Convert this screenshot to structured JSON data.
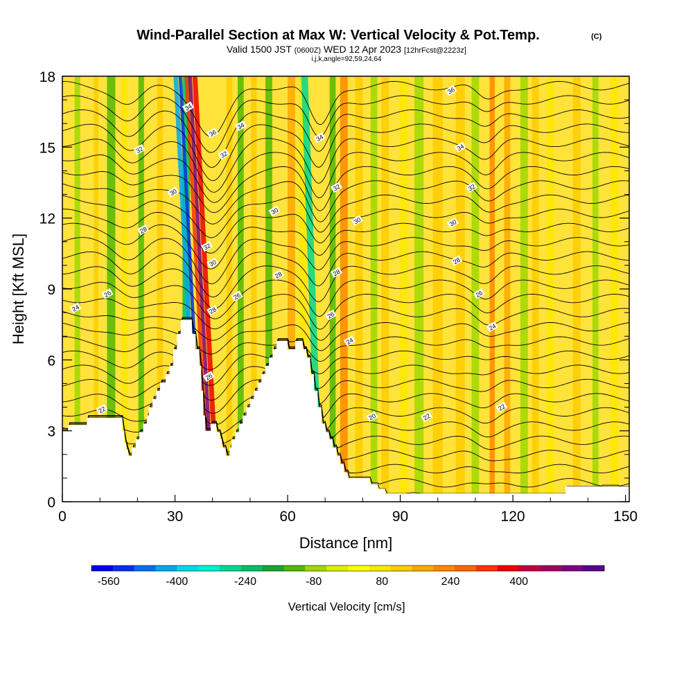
{
  "header": {
    "title": "Wind-Parallel Section at Max W: Vertical Velocity & Pot.Temp.",
    "copyright": "(C)",
    "subtitle_prefix": "Valid 1500 JST",
    "subtitle_zulu": "(0600Z)",
    "subtitle_date": "WED 12 Apr 2023",
    "subtitle_fcst": "[12hrFcst@2223z]",
    "params": "i,j,k,angle=92,59,24,64"
  },
  "chart_data": {
    "type": "heatmap",
    "xlabel": "Distance [nm]",
    "ylabel": "Height [Kft MSL]",
    "xlim": [
      0,
      151
    ],
    "ylim": [
      0,
      18
    ],
    "x_ticks": [
      0,
      30,
      60,
      90,
      120,
      150
    ],
    "y_ticks": [
      0,
      3,
      6,
      9,
      12,
      15,
      18
    ],
    "grid": false,
    "terrain_kft": [
      [
        0,
        3.0
      ],
      [
        1.5,
        3.0
      ],
      [
        1.5,
        3.25
      ],
      [
        6.5,
        3.25
      ],
      [
        6.5,
        3.55
      ],
      [
        16.0,
        3.55
      ],
      [
        16.0,
        3.0
      ],
      [
        16.5,
        3.0
      ],
      [
        16.5,
        2.5
      ],
      [
        17.0,
        2.5
      ],
      [
        17.0,
        2.2
      ],
      [
        17.5,
        2.2
      ],
      [
        17.5,
        1.95
      ],
      [
        18.5,
        1.95
      ],
      [
        18.5,
        2.3
      ],
      [
        19.5,
        2.3
      ],
      [
        19.5,
        2.65
      ],
      [
        20.5,
        2.65
      ],
      [
        20.5,
        2.95
      ],
      [
        21.5,
        2.95
      ],
      [
        21.5,
        3.3
      ],
      [
        22.5,
        3.3
      ],
      [
        22.5,
        3.65
      ],
      [
        23.0,
        3.65
      ],
      [
        23.0,
        4.0
      ],
      [
        24.0,
        4.0
      ],
      [
        24.0,
        4.35
      ],
      [
        25.0,
        4.35
      ],
      [
        25.0,
        4.7
      ],
      [
        26.0,
        4.7
      ],
      [
        26.0,
        5.05
      ],
      [
        27.5,
        5.05
      ],
      [
        27.5,
        5.4
      ],
      [
        28.5,
        5.4
      ],
      [
        28.5,
        5.75
      ],
      [
        29.5,
        5.75
      ],
      [
        29.5,
        6.45
      ],
      [
        30.5,
        6.45
      ],
      [
        30.5,
        7.1
      ],
      [
        31.5,
        7.1
      ],
      [
        31.5,
        7.7
      ],
      [
        34.5,
        7.7
      ],
      [
        34.5,
        7.1
      ],
      [
        35.5,
        7.1
      ],
      [
        35.5,
        6.45
      ],
      [
        36.5,
        6.45
      ],
      [
        36.5,
        5.75
      ],
      [
        37.0,
        5.75
      ],
      [
        37.0,
        4.7
      ],
      [
        37.5,
        4.7
      ],
      [
        37.5,
        3.65
      ],
      [
        38.0,
        3.65
      ],
      [
        38.0,
        3.0
      ],
      [
        39.5,
        3.0
      ],
      [
        39.5,
        3.3
      ],
      [
        41.0,
        3.3
      ],
      [
        41.0,
        2.95
      ],
      [
        42.0,
        2.95
      ],
      [
        42.0,
        2.65
      ],
      [
        42.5,
        2.65
      ],
      [
        42.5,
        2.3
      ],
      [
        43.5,
        2.3
      ],
      [
        43.5,
        1.95
      ],
      [
        44.5,
        1.95
      ],
      [
        44.5,
        2.3
      ],
      [
        45.0,
        2.3
      ],
      [
        45.0,
        2.65
      ],
      [
        46.0,
        2.65
      ],
      [
        46.0,
        2.95
      ],
      [
        47.0,
        2.95
      ],
      [
        47.0,
        3.3
      ],
      [
        48.0,
        3.3
      ],
      [
        48.0,
        3.65
      ],
      [
        49.0,
        3.65
      ],
      [
        49.0,
        4.0
      ],
      [
        50.0,
        4.0
      ],
      [
        50.0,
        4.35
      ],
      [
        51.0,
        4.35
      ],
      [
        51.0,
        4.7
      ],
      [
        52.0,
        4.7
      ],
      [
        52.0,
        5.05
      ],
      [
        53.0,
        5.05
      ],
      [
        53.0,
        5.4
      ],
      [
        54.0,
        5.4
      ],
      [
        54.0,
        5.75
      ],
      [
        55.0,
        5.75
      ],
      [
        55.0,
        6.1
      ],
      [
        56.0,
        6.1
      ],
      [
        56.0,
        6.45
      ],
      [
        57.0,
        6.45
      ],
      [
        57.0,
        6.8
      ],
      [
        60.0,
        6.8
      ],
      [
        60.0,
        6.45
      ],
      [
        62.0,
        6.45
      ],
      [
        62.0,
        6.8
      ],
      [
        64.0,
        6.8
      ],
      [
        64.0,
        6.45
      ],
      [
        65.0,
        6.45
      ],
      [
        65.0,
        6.1
      ],
      [
        66.0,
        6.1
      ],
      [
        66.0,
        5.4
      ],
      [
        67.0,
        5.4
      ],
      [
        67.0,
        4.7
      ],
      [
        68.0,
        4.7
      ],
      [
        68.0,
        4.0
      ],
      [
        69.0,
        4.0
      ],
      [
        69.0,
        3.3
      ],
      [
        70.0,
        3.3
      ],
      [
        70.0,
        2.95
      ],
      [
        71.0,
        2.95
      ],
      [
        71.0,
        2.65
      ],
      [
        72.0,
        2.65
      ],
      [
        72.0,
        2.3
      ],
      [
        73.0,
        2.3
      ],
      [
        73.0,
        1.95
      ],
      [
        74.0,
        1.95
      ],
      [
        74.0,
        1.6
      ],
      [
        75.0,
        1.6
      ],
      [
        75.0,
        1.25
      ],
      [
        76.0,
        1.25
      ],
      [
        76.0,
        1.0
      ],
      [
        82.0,
        1.0
      ],
      [
        82.0,
        0.75
      ],
      [
        84.0,
        0.75
      ],
      [
        84.0,
        0.55
      ],
      [
        86.0,
        0.55
      ],
      [
        86.0,
        0.35
      ],
      [
        134.0,
        0.35
      ],
      [
        134.0,
        0.65
      ],
      [
        151.0,
        0.65
      ]
    ],
    "w_bands": [
      {
        "x": 4,
        "w": 1.5,
        "v": -60
      },
      {
        "x": 9,
        "w": 1.2,
        "v": 120
      },
      {
        "x": 13,
        "w": 2.2,
        "v": -120
      },
      {
        "x": 16.5,
        "w": 1.4,
        "v": 60
      },
      {
        "x": 21,
        "w": 1.5,
        "v": -140
      },
      {
        "x": 26,
        "w": 1.5,
        "v": 100
      },
      {
        "x": 33,
        "w": 2.0,
        "v": -220
      },
      {
        "x": 36.2,
        "w": 1.2,
        "v": -420
      },
      {
        "x": 37.4,
        "w": 0.9,
        "v": -520
      },
      {
        "x": 39.0,
        "w": 0.9,
        "v": 300
      },
      {
        "x": 40.0,
        "w": 1.0,
        "v": 520
      },
      {
        "x": 41.3,
        "w": 1.3,
        "v": 380
      },
      {
        "x": 44.5,
        "w": 1.6,
        "v": 120
      },
      {
        "x": 47.5,
        "w": 1.6,
        "v": -140
      },
      {
        "x": 51,
        "w": 1.5,
        "v": 100
      },
      {
        "x": 55,
        "w": 1.8,
        "v": -120
      },
      {
        "x": 61,
        "w": 2.0,
        "v": 180
      },
      {
        "x": 64,
        "w": 2.0,
        "v": 80
      },
      {
        "x": 68.5,
        "w": 1.8,
        "v": -260
      },
      {
        "x": 72,
        "w": 1.6,
        "v": -120
      },
      {
        "x": 75,
        "w": 2.0,
        "v": 200
      },
      {
        "x": 79,
        "w": 2.0,
        "v": 120
      },
      {
        "x": 83,
        "w": 1.8,
        "v": -60
      },
      {
        "x": 86,
        "w": 2.0,
        "v": 140
      },
      {
        "x": 91,
        "w": 2.0,
        "v": 80
      },
      {
        "x": 95,
        "w": 2.4,
        "v": -80
      },
      {
        "x": 100,
        "w": 2.6,
        "v": 140
      },
      {
        "x": 106,
        "w": 2.4,
        "v": 100
      },
      {
        "x": 110,
        "w": 2.0,
        "v": -60
      },
      {
        "x": 114.5,
        "w": 1.4,
        "v": 200
      },
      {
        "x": 118.5,
        "w": 1.6,
        "v": 160
      },
      {
        "x": 123,
        "w": 2.0,
        "v": -80
      },
      {
        "x": 126,
        "w": 1.8,
        "v": 140
      },
      {
        "x": 130,
        "w": 1.8,
        "v": 80
      },
      {
        "x": 137,
        "w": 2.0,
        "v": 120
      },
      {
        "x": 142,
        "w": 1.6,
        "v": -80
      },
      {
        "x": 147,
        "w": 2.0,
        "v": 80
      }
    ],
    "theta_label_values": [
      {
        "x": 10.5,
        "y": 3.9,
        "text": "22"
      },
      {
        "x": 3.5,
        "y": 8.2,
        "text": "24"
      },
      {
        "x": 12,
        "y": 8.8,
        "text": "26"
      },
      {
        "x": 21.5,
        "y": 11.5,
        "text": "28"
      },
      {
        "x": 29.5,
        "y": 13.1,
        "text": "30"
      },
      {
        "x": 20.5,
        "y": 14.9,
        "text": "32"
      },
      {
        "x": 33.5,
        "y": 16.7,
        "text": "34"
      },
      {
        "x": 40,
        "y": 15.6,
        "text": "36"
      },
      {
        "x": 43,
        "y": 14.7,
        "text": "32"
      },
      {
        "x": 47.5,
        "y": 15.9,
        "text": "34"
      },
      {
        "x": 38.5,
        "y": 10.8,
        "text": "32"
      },
      {
        "x": 40,
        "y": 10.1,
        "text": "30"
      },
      {
        "x": 40,
        "y": 8.1,
        "text": "28"
      },
      {
        "x": 39,
        "y": 5.3,
        "text": "26"
      },
      {
        "x": 46.5,
        "y": 8.7,
        "text": "26"
      },
      {
        "x": 56.5,
        "y": 12.3,
        "text": "30"
      },
      {
        "x": 57.5,
        "y": 9.6,
        "text": "28"
      },
      {
        "x": 68.5,
        "y": 15.4,
        "text": "34"
      },
      {
        "x": 73,
        "y": 13.3,
        "text": "32"
      },
      {
        "x": 78.5,
        "y": 11.9,
        "text": "30"
      },
      {
        "x": 73,
        "y": 9.7,
        "text": "28"
      },
      {
        "x": 71.5,
        "y": 7.9,
        "text": "26"
      },
      {
        "x": 76.5,
        "y": 6.8,
        "text": "24"
      },
      {
        "x": 82.5,
        "y": 3.6,
        "text": "20"
      },
      {
        "x": 97,
        "y": 3.6,
        "text": "22"
      },
      {
        "x": 103.5,
        "y": 17.4,
        "text": "36"
      },
      {
        "x": 106,
        "y": 15.0,
        "text": "34"
      },
      {
        "x": 109,
        "y": 13.3,
        "text": "32"
      },
      {
        "x": 104,
        "y": 11.8,
        "text": "30"
      },
      {
        "x": 105,
        "y": 10.2,
        "text": "28"
      },
      {
        "x": 111,
        "y": 8.8,
        "text": "26"
      },
      {
        "x": 114.5,
        "y": 7.4,
        "text": "24"
      },
      {
        "x": 117,
        "y": 4.0,
        "text": "22"
      }
    ]
  },
  "colorbar": {
    "label": "Vertical Velocity [cm/s]",
    "tick_labels": [
      "-560",
      "-400",
      "-240",
      "-80",
      "80",
      "240",
      "400"
    ],
    "colors": [
      "#0000ee",
      "#0030f0",
      "#0070f0",
      "#00a8f0",
      "#00d8f0",
      "#00f0d0",
      "#00d890",
      "#00c060",
      "#10a830",
      "#50b800",
      "#a0d800",
      "#ddee00",
      "#ffff00",
      "#ffe800",
      "#ffcc00",
      "#ffa800",
      "#ff8800",
      "#ff6600",
      "#ff3300",
      "#ee0000",
      "#c00040",
      "#a00060",
      "#800080",
      "#5a0090"
    ]
  }
}
